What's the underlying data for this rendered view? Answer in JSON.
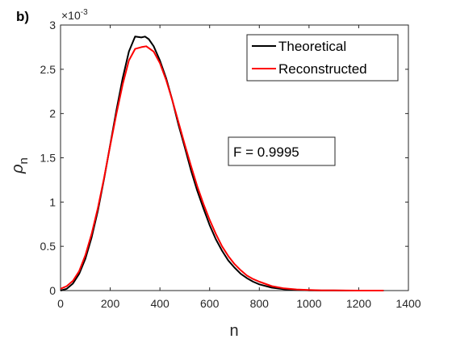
{
  "panel_label": "b)",
  "chart_data": {
    "type": "line",
    "xlabel": "n",
    "ylabel": "ρ",
    "ylabel_subscript": "n",
    "y_exponent_label": "×10",
    "y_exponent_power": "-3",
    "xlim": [
      0,
      1400
    ],
    "ylim": [
      0,
      0.003
    ],
    "x_ticks": [
      0,
      200,
      400,
      600,
      800,
      1000,
      1200,
      1400
    ],
    "x_tick_labels": [
      "0",
      "200",
      "400",
      "600",
      "800",
      "1000",
      "1200",
      "1400"
    ],
    "y_ticks": [
      0,
      0.0005,
      0.001,
      0.0015,
      0.002,
      0.0025,
      0.003
    ],
    "y_tick_labels": [
      "0",
      "0.5",
      "1",
      "1.5",
      "2",
      "2.5",
      "3"
    ],
    "grid": false,
    "legend_position": "top-right",
    "annotation": "F = 0.9995",
    "series": [
      {
        "name": "Theoretical",
        "color": "#000000",
        "x": [
          0,
          25,
          50,
          75,
          100,
          125,
          150,
          175,
          200,
          225,
          250,
          275,
          300,
          325,
          340,
          355,
          375,
          400,
          425,
          450,
          475,
          500,
          525,
          550,
          575,
          600,
          625,
          650,
          675,
          700,
          725,
          750,
          775,
          800,
          850,
          900,
          950,
          1000,
          1050,
          1100,
          1150,
          1200,
          1250,
          1300
        ],
        "y": [
          0,
          2e-05,
          8e-05,
          0.00019,
          0.00036,
          0.0006,
          0.0009,
          0.00126,
          0.00165,
          0.00204,
          0.0024,
          0.0027,
          0.00287,
          0.00286,
          0.00287,
          0.00284,
          0.00276,
          0.0026,
          0.0024,
          0.00215,
          0.00187,
          0.00162,
          0.00136,
          0.00113,
          0.00093,
          0.00074,
          0.00058,
          0.00045,
          0.00034,
          0.00026,
          0.00019,
          0.00014,
          0.0001,
          7e-05,
          3.3e-05,
          1.5e-05,
          7e-06,
          3e-06,
          1.2e-06,
          5e-07,
          2e-07,
          1e-07,
          0,
          0
        ]
      },
      {
        "name": "Reconstructed",
        "color": "#ff0000",
        "x": [
          0,
          25,
          50,
          75,
          100,
          125,
          150,
          175,
          200,
          225,
          250,
          275,
          300,
          325,
          345,
          375,
          400,
          425,
          450,
          475,
          500,
          525,
          550,
          575,
          600,
          625,
          650,
          675,
          700,
          725,
          750,
          775,
          800,
          850,
          900,
          950,
          1000,
          1050,
          1100,
          1150,
          1200,
          1250,
          1300
        ],
        "y": [
          2e-05,
          5e-05,
          0.00011,
          0.00022,
          0.0004,
          0.00064,
          0.00093,
          0.00127,
          0.00164,
          0.002,
          0.00233,
          0.0026,
          0.00273,
          0.00275,
          0.00276,
          0.0027,
          0.00257,
          0.00238,
          0.00215,
          0.0019,
          0.00165,
          0.00141,
          0.00118,
          0.00098,
          0.0008,
          0.00064,
          0.0005,
          0.00039,
          0.0003,
          0.00023,
          0.00017,
          0.00013,
          0.0001,
          5e-05,
          2.5e-05,
          1.3e-05,
          6e-06,
          3e-06,
          1.5e-06,
          7e-07,
          3e-07,
          1e-07,
          0
        ]
      }
    ]
  }
}
